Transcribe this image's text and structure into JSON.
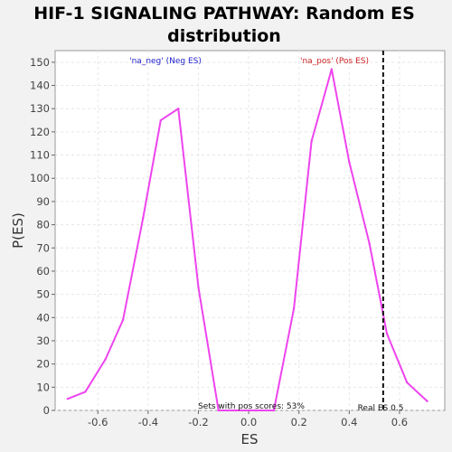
{
  "chart_data": {
    "type": "line",
    "title_lines": [
      "HIF-1 SIGNALING PATHWAY: Random ES",
      "distribution"
    ],
    "xlabel": "ES",
    "ylabel": "P(ES)",
    "xlim": [
      -0.77,
      0.78
    ],
    "ylim": [
      0,
      155
    ],
    "xticks": [
      -0.6,
      -0.4,
      -0.2,
      0.0,
      0.2,
      0.4,
      0.6
    ],
    "xtick_labels": [
      "-0.6",
      "-0.4",
      "-0.2",
      "0.0",
      "0.2",
      "0.4",
      "0.6"
    ],
    "yticks": [
      0,
      10,
      20,
      30,
      40,
      50,
      60,
      70,
      80,
      90,
      100,
      110,
      120,
      130,
      140,
      150
    ],
    "ytick_labels": [
      "0",
      "10",
      "20",
      "30",
      "40",
      "50",
      "60",
      "70",
      "80",
      "90",
      "100",
      "110",
      "120",
      "130",
      "140",
      "150"
    ],
    "grid": true,
    "series": [
      {
        "color": "#ee44ee",
        "x": [
          -0.72,
          -0.65,
          -0.57,
          -0.5,
          -0.42,
          -0.35,
          -0.28,
          -0.2,
          -0.12,
          -0.05,
          0.03,
          0.1,
          0.18,
          0.25,
          0.33,
          0.4,
          0.48,
          0.55,
          0.63,
          0.71
        ],
        "y": [
          5,
          8,
          22,
          39,
          83,
          125,
          130,
          53,
          0,
          0,
          0,
          0,
          44,
          116,
          147,
          107,
          72,
          33,
          12,
          4
        ]
      }
    ],
    "real_es": 0.535,
    "annotations": {
      "neg_label": "'na_neg' (Neg ES)",
      "pos_label": "'na_pos' (Pos ES)",
      "pos_scores": "Sets with pos scores: 53%",
      "real_es_label": "Real ES 0.5"
    },
    "colors": {
      "neg_label": "#2222cc",
      "pos_label": "#cc2222",
      "line": "#ee44ee"
    }
  }
}
